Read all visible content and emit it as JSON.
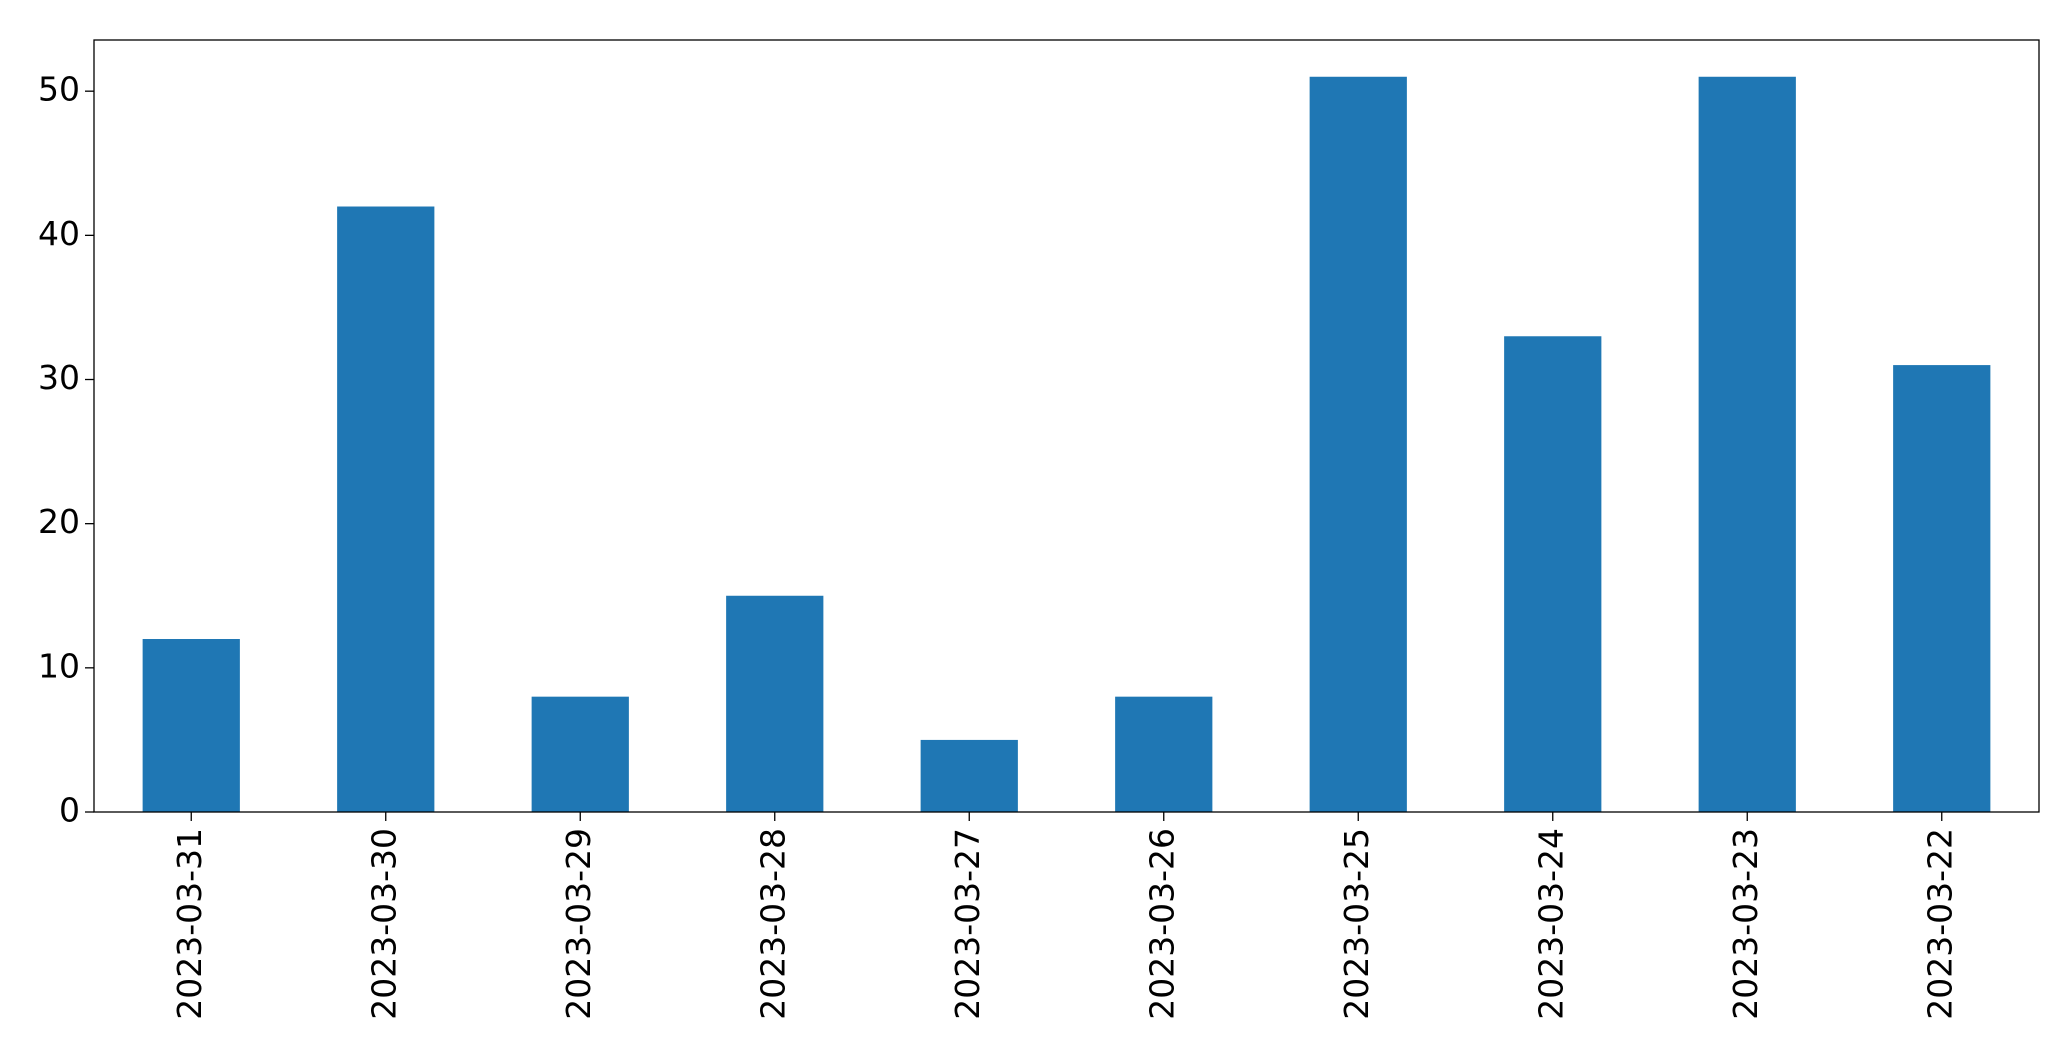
{
  "chart_data": {
    "type": "bar",
    "categories": [
      "2023-03-31",
      "2023-03-30",
      "2023-03-29",
      "2023-03-28",
      "2023-03-27",
      "2023-03-26",
      "2023-03-25",
      "2023-03-24",
      "2023-03-23",
      "2023-03-22"
    ],
    "values": [
      12,
      42,
      8,
      15,
      5,
      8,
      51,
      33,
      51,
      31
    ],
    "color": "#1f77b4",
    "ylim": [
      0,
      53.55
    ],
    "yticks": [
      0,
      10,
      20,
      30,
      40,
      50
    ],
    "grid": false
  }
}
